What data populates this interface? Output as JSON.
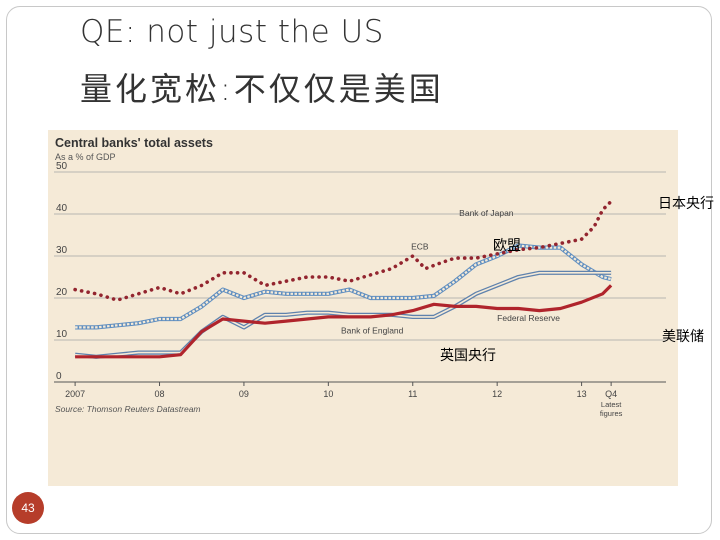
{
  "slide": {
    "title_en": "QE: not just the US",
    "title_zh": "量化宽松:不仅仅是美国",
    "page_number": "43"
  },
  "overlays": {
    "boj": "日本央行",
    "ecb": "欧盟",
    "boe": "英国央行",
    "fed": "美联储"
  },
  "colors": {
    "background": "#f5ead7",
    "grid": "#a3a3a3",
    "fed": "#b0242c",
    "boj": "#93252f",
    "ecb": "#5f8ec0",
    "boe": "#5f82ad",
    "accent": "#b63d2a"
  },
  "chart_data": {
    "type": "line",
    "title": "Central banks' total assets",
    "subtitle": "As a % of GDP",
    "source": "Source: Thomson Reuters Datastream",
    "xlabel": "",
    "ylabel": "As a % of GDP",
    "ylim": [
      0,
      50
    ],
    "xlim": [
      2006.75,
      2014.0
    ],
    "yticks": [
      0,
      10,
      20,
      30,
      40,
      50
    ],
    "xticks": [
      {
        "value": 2007.0,
        "label": "2007"
      },
      {
        "value": 2008.0,
        "label": "08"
      },
      {
        "value": 2009.0,
        "label": "09"
      },
      {
        "value": 2010.0,
        "label": "10"
      },
      {
        "value": 2011.0,
        "label": "11"
      },
      {
        "value": 2012.0,
        "label": "12"
      },
      {
        "value": 2013.0,
        "label": "13"
      },
      {
        "value": 2013.35,
        "label": "Q4"
      }
    ],
    "latest_label": [
      "Latest",
      "figures"
    ],
    "series": [
      {
        "name": "Bank of Japan",
        "style": "dotted",
        "x": [
          2007.0,
          2007.25,
          2007.5,
          2007.75,
          2008.0,
          2008.25,
          2008.5,
          2008.75,
          2009.0,
          2009.25,
          2009.5,
          2009.75,
          2010.0,
          2010.25,
          2010.5,
          2010.75,
          2011.0,
          2011.15,
          2011.35,
          2011.5,
          2011.75,
          2012.0,
          2012.25,
          2012.5,
          2012.75,
          2013.0,
          2013.15,
          2013.25,
          2013.35
        ],
        "values": [
          22,
          21,
          19.5,
          21,
          22.5,
          21,
          23,
          26,
          26,
          23,
          24,
          25,
          25,
          24,
          25.5,
          27,
          30,
          27,
          28.5,
          29.5,
          29.5,
          30.5,
          31.5,
          32,
          33,
          34,
          37,
          41,
          43
        ]
      },
      {
        "name": "ECB",
        "style": "double",
        "x": [
          2007.0,
          2007.25,
          2007.5,
          2007.75,
          2008.0,
          2008.25,
          2008.5,
          2008.75,
          2009.0,
          2009.25,
          2009.5,
          2009.75,
          2010.0,
          2010.25,
          2010.5,
          2010.75,
          2011.0,
          2011.25,
          2011.5,
          2011.75,
          2012.0,
          2012.25,
          2012.5,
          2012.75,
          2013.0,
          2013.25,
          2013.35
        ],
        "values": [
          13,
          13,
          13.5,
          14,
          15,
          15,
          18,
          22,
          20,
          21.5,
          21,
          21,
          21,
          22,
          20,
          20,
          20,
          20.5,
          24,
          28,
          30,
          32.5,
          32,
          32,
          28,
          25,
          24.5
        ]
      },
      {
        "name": "Bank of England",
        "style": "double",
        "x": [
          2007.0,
          2007.25,
          2007.5,
          2007.75,
          2008.0,
          2008.25,
          2008.5,
          2008.75,
          2009.0,
          2009.25,
          2009.5,
          2009.75,
          2010.0,
          2010.25,
          2010.5,
          2010.75,
          2011.0,
          2011.25,
          2011.5,
          2011.75,
          2012.0,
          2012.25,
          2012.5,
          2012.75,
          2013.0,
          2013.25,
          2013.35
        ],
        "values": [
          6.5,
          6,
          6.5,
          7,
          7,
          7,
          12,
          15.5,
          13,
          16,
          16,
          16.5,
          16.5,
          16,
          16,
          16,
          15.5,
          15.5,
          18,
          21,
          23,
          25,
          26,
          26,
          26,
          26,
          26
        ]
      },
      {
        "name": "Federal Reserve",
        "style": "solid",
        "x": [
          2007.0,
          2007.25,
          2007.5,
          2007.75,
          2008.0,
          2008.25,
          2008.5,
          2008.75,
          2009.0,
          2009.25,
          2009.5,
          2009.75,
          2010.0,
          2010.25,
          2010.5,
          2010.75,
          2011.0,
          2011.25,
          2011.5,
          2011.75,
          2012.0,
          2012.25,
          2012.5,
          2012.75,
          2013.0,
          2013.25,
          2013.35
        ],
        "values": [
          6,
          6,
          6,
          6,
          6,
          6.5,
          12,
          15,
          14.5,
          14,
          14.5,
          15,
          15.5,
          15.5,
          15.5,
          16,
          17,
          18.5,
          18,
          18,
          17.5,
          17.5,
          17,
          17.5,
          19,
          21,
          23
        ]
      }
    ],
    "annotations": [
      {
        "series": "Bank of Japan",
        "label": "Bank of Japan",
        "x": 2011.55,
        "y": 39.5
      },
      {
        "series": "ECB",
        "label": "ECB",
        "x": 2010.98,
        "y": 31.5
      },
      {
        "series": "Bank of England",
        "label": "Bank of England",
        "x": 2010.15,
        "y": 11.5
      },
      {
        "series": "Federal Reserve",
        "label": "Federal Reserve",
        "x": 2012.0,
        "y": 14.5
      }
    ]
  }
}
